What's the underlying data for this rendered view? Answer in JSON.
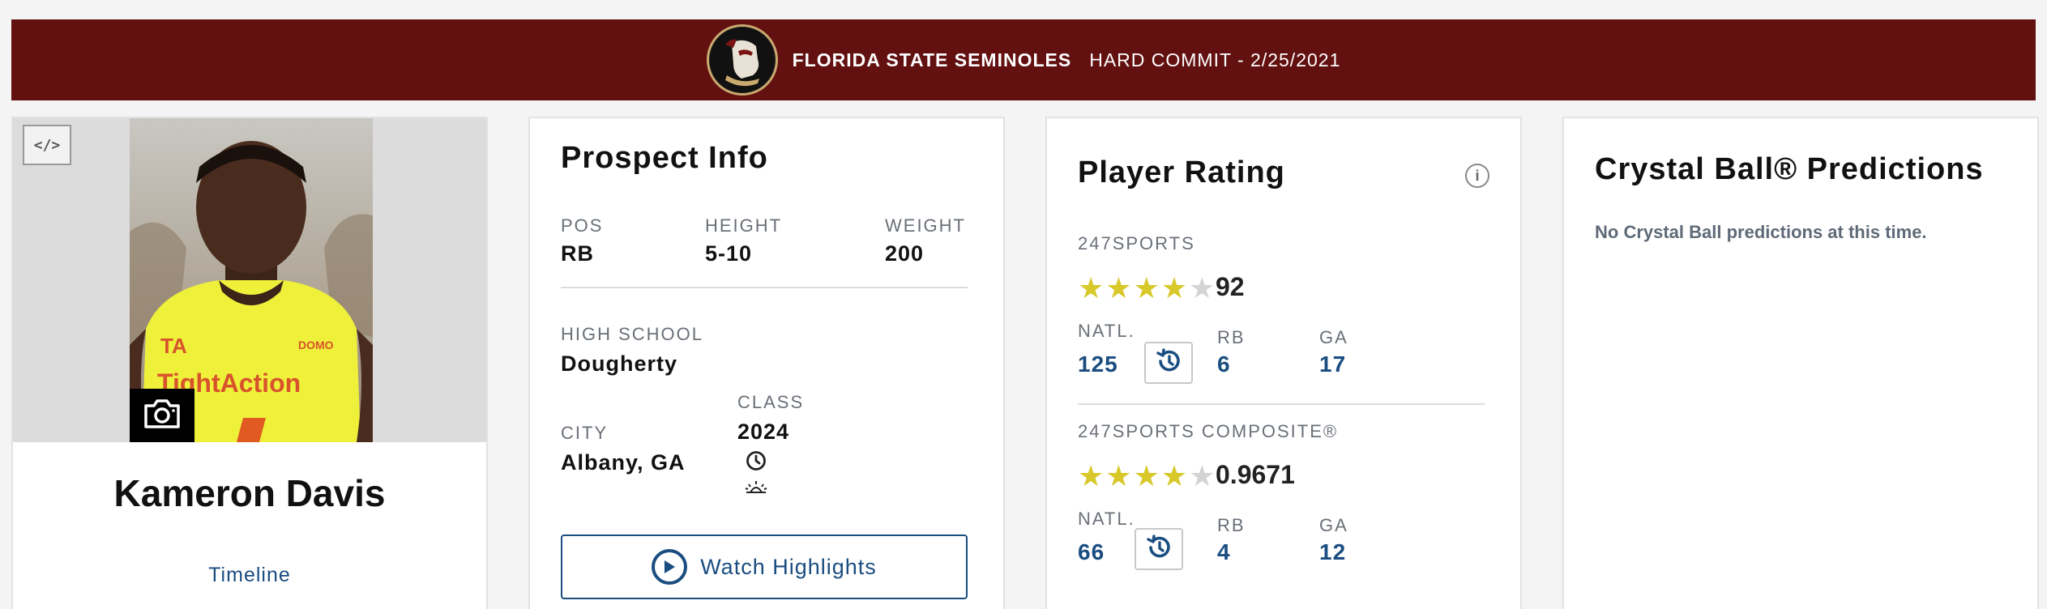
{
  "banner": {
    "team": "FLORIDA STATE SEMINOLES",
    "commit": "HARD COMMIT - 2/25/2021",
    "logo_icon": "seminoles-logo-icon",
    "bg_color": "#621010"
  },
  "player": {
    "name": "Kameron Davis",
    "timeline_label": "Timeline",
    "embed_label": "</>"
  },
  "prospect": {
    "title": "Prospect Info",
    "pos_label": "POS",
    "pos": "RB",
    "height_label": "HEIGHT",
    "height": "5-10",
    "weight_label": "WEIGHT",
    "weight": "200",
    "school_label": "HIGH SCHOOL",
    "school": "Dougherty",
    "city_label": "CITY",
    "city": "Albany, GA",
    "class_label": "CLASS",
    "class": "2024",
    "watch_label": "Watch Highlights"
  },
  "rating": {
    "title": "Player Rating",
    "info_label": "i",
    "sports247": {
      "label": "247SPORTS",
      "stars": 4,
      "score": "92",
      "natl_label": "NATL.",
      "natl": "125",
      "pos_label": "RB",
      "pos_rank": "6",
      "state_label": "GA",
      "state_rank": "17"
    },
    "composite": {
      "label": "247SPORTS COMPOSITE®",
      "stars": 4,
      "score": "0.9671",
      "natl_label": "NATL.",
      "natl": "66",
      "pos_label": "RB",
      "pos_rank": "4",
      "state_label": "GA",
      "state_rank": "12"
    }
  },
  "crystal_ball": {
    "title": "Crystal Ball® Predictions",
    "empty": "No Crystal Ball predictions at this time."
  },
  "colors": {
    "accent": "#1a4d80",
    "star": "#d8c82a"
  }
}
